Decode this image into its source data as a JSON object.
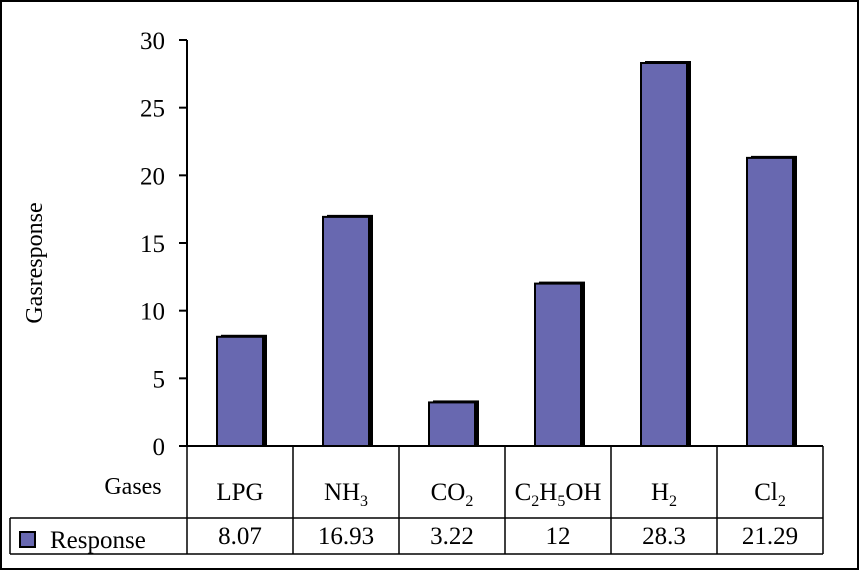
{
  "chart_data": {
    "type": "bar",
    "title": "",
    "xlabel": "Gases",
    "ylabel": "Gasresponse",
    "ylim": [
      0,
      30
    ],
    "yticks": [
      0,
      5,
      10,
      15,
      20,
      25,
      30
    ],
    "grid": false,
    "legend": "data-table-left",
    "categories": [
      {
        "base": "LPG",
        "parts": [
          {
            "t": "LPG",
            "sub": false
          }
        ]
      },
      {
        "base": "NH3",
        "parts": [
          {
            "t": "NH",
            "sub": false
          },
          {
            "t": "3",
            "sub": true
          }
        ]
      },
      {
        "base": "CO2",
        "parts": [
          {
            "t": "CO",
            "sub": false
          },
          {
            "t": "2",
            "sub": true
          }
        ]
      },
      {
        "base": "C2H5OH",
        "parts": [
          {
            "t": "C",
            "sub": false
          },
          {
            "t": "2",
            "sub": true
          },
          {
            "t": "H",
            "sub": false
          },
          {
            "t": "5",
            "sub": true
          },
          {
            "t": "OH",
            "sub": false
          }
        ]
      },
      {
        "base": "H2",
        "parts": [
          {
            "t": "H",
            "sub": false
          },
          {
            "t": "2",
            "sub": true
          }
        ]
      },
      {
        "base": "Cl2",
        "parts": [
          {
            "t": "Cl",
            "sub": false
          },
          {
            "t": "2",
            "sub": true
          }
        ]
      }
    ],
    "series": [
      {
        "name": "Response",
        "color": "#6868B0",
        "values": [
          8.07,
          16.93,
          3.22,
          12,
          28.3,
          21.29
        ],
        "value_labels": [
          "8.07",
          "16.93",
          "3.22",
          "12",
          "28.3",
          "21.29"
        ]
      }
    ]
  }
}
